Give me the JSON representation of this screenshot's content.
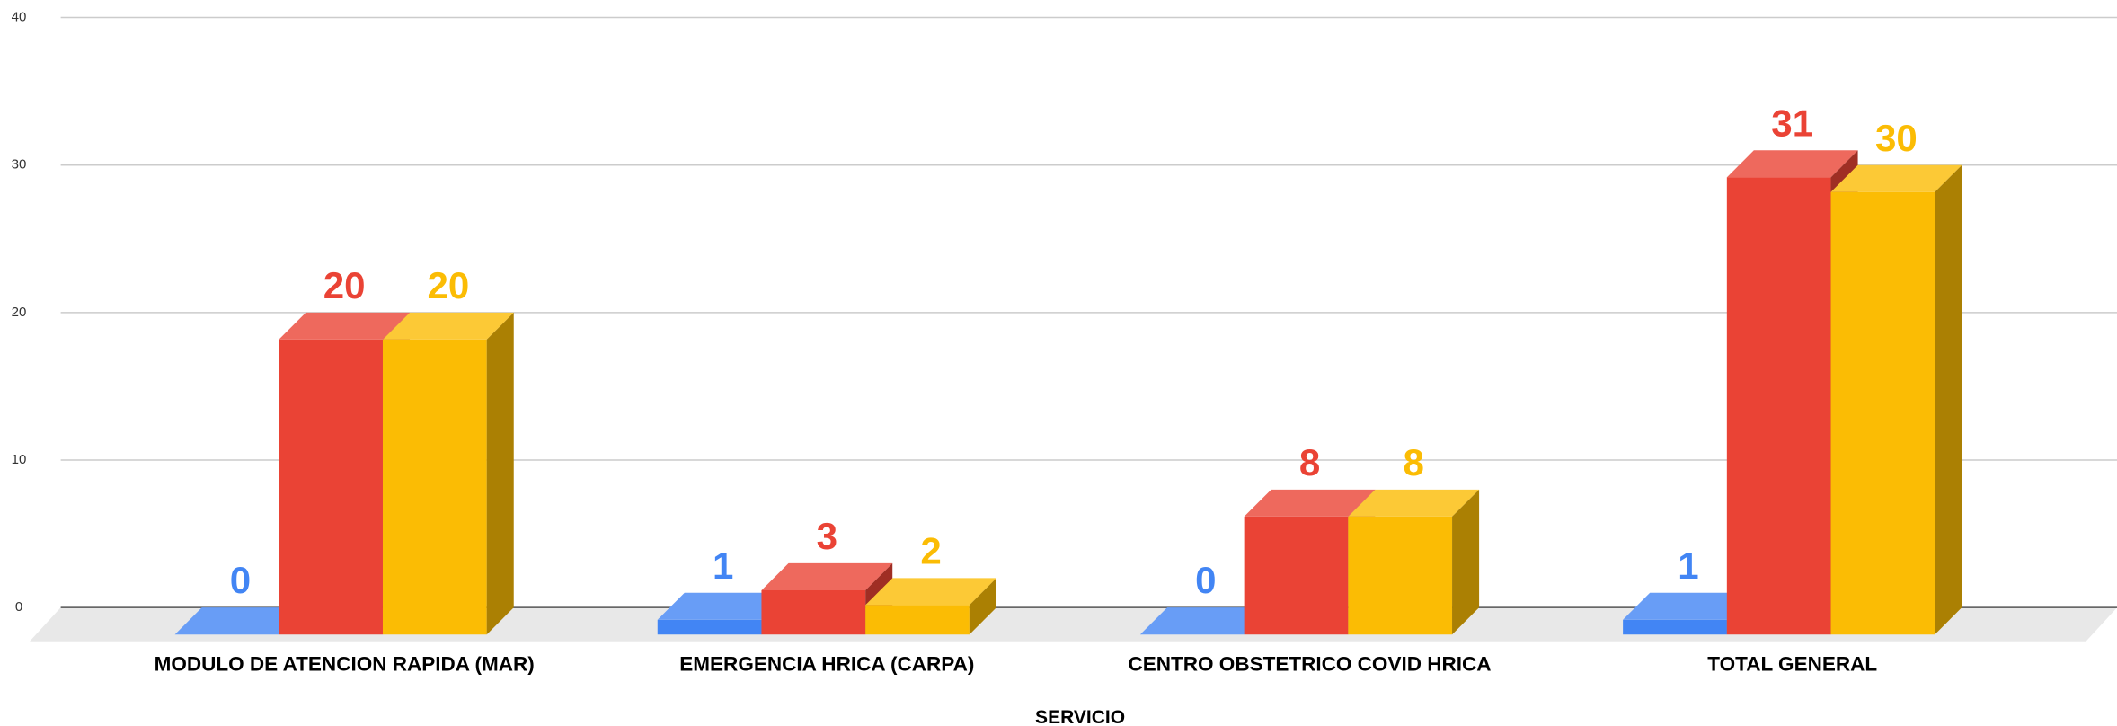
{
  "chart_data": {
    "type": "bar3d",
    "x_label": "SERVICIO",
    "categories": [
      "MODULO DE ATENCION RAPIDA (MAR)",
      "EMERGENCIA HRICA (CARPA)",
      "CENTRO OBSTETRICO COVID HRICA",
      "TOTAL GENERAL"
    ],
    "series": [
      {
        "color": "#4285f4",
        "values": [
          0,
          1,
          0,
          1
        ]
      },
      {
        "color": "#ea4335",
        "values": [
          20,
          3,
          8,
          31
        ]
      },
      {
        "color": "#fbbc04",
        "values": [
          20,
          2,
          8,
          30
        ]
      }
    ],
    "ylim": [
      0,
      40
    ],
    "yticks": [
      0,
      10,
      20,
      30,
      40
    ],
    "grid": true
  }
}
